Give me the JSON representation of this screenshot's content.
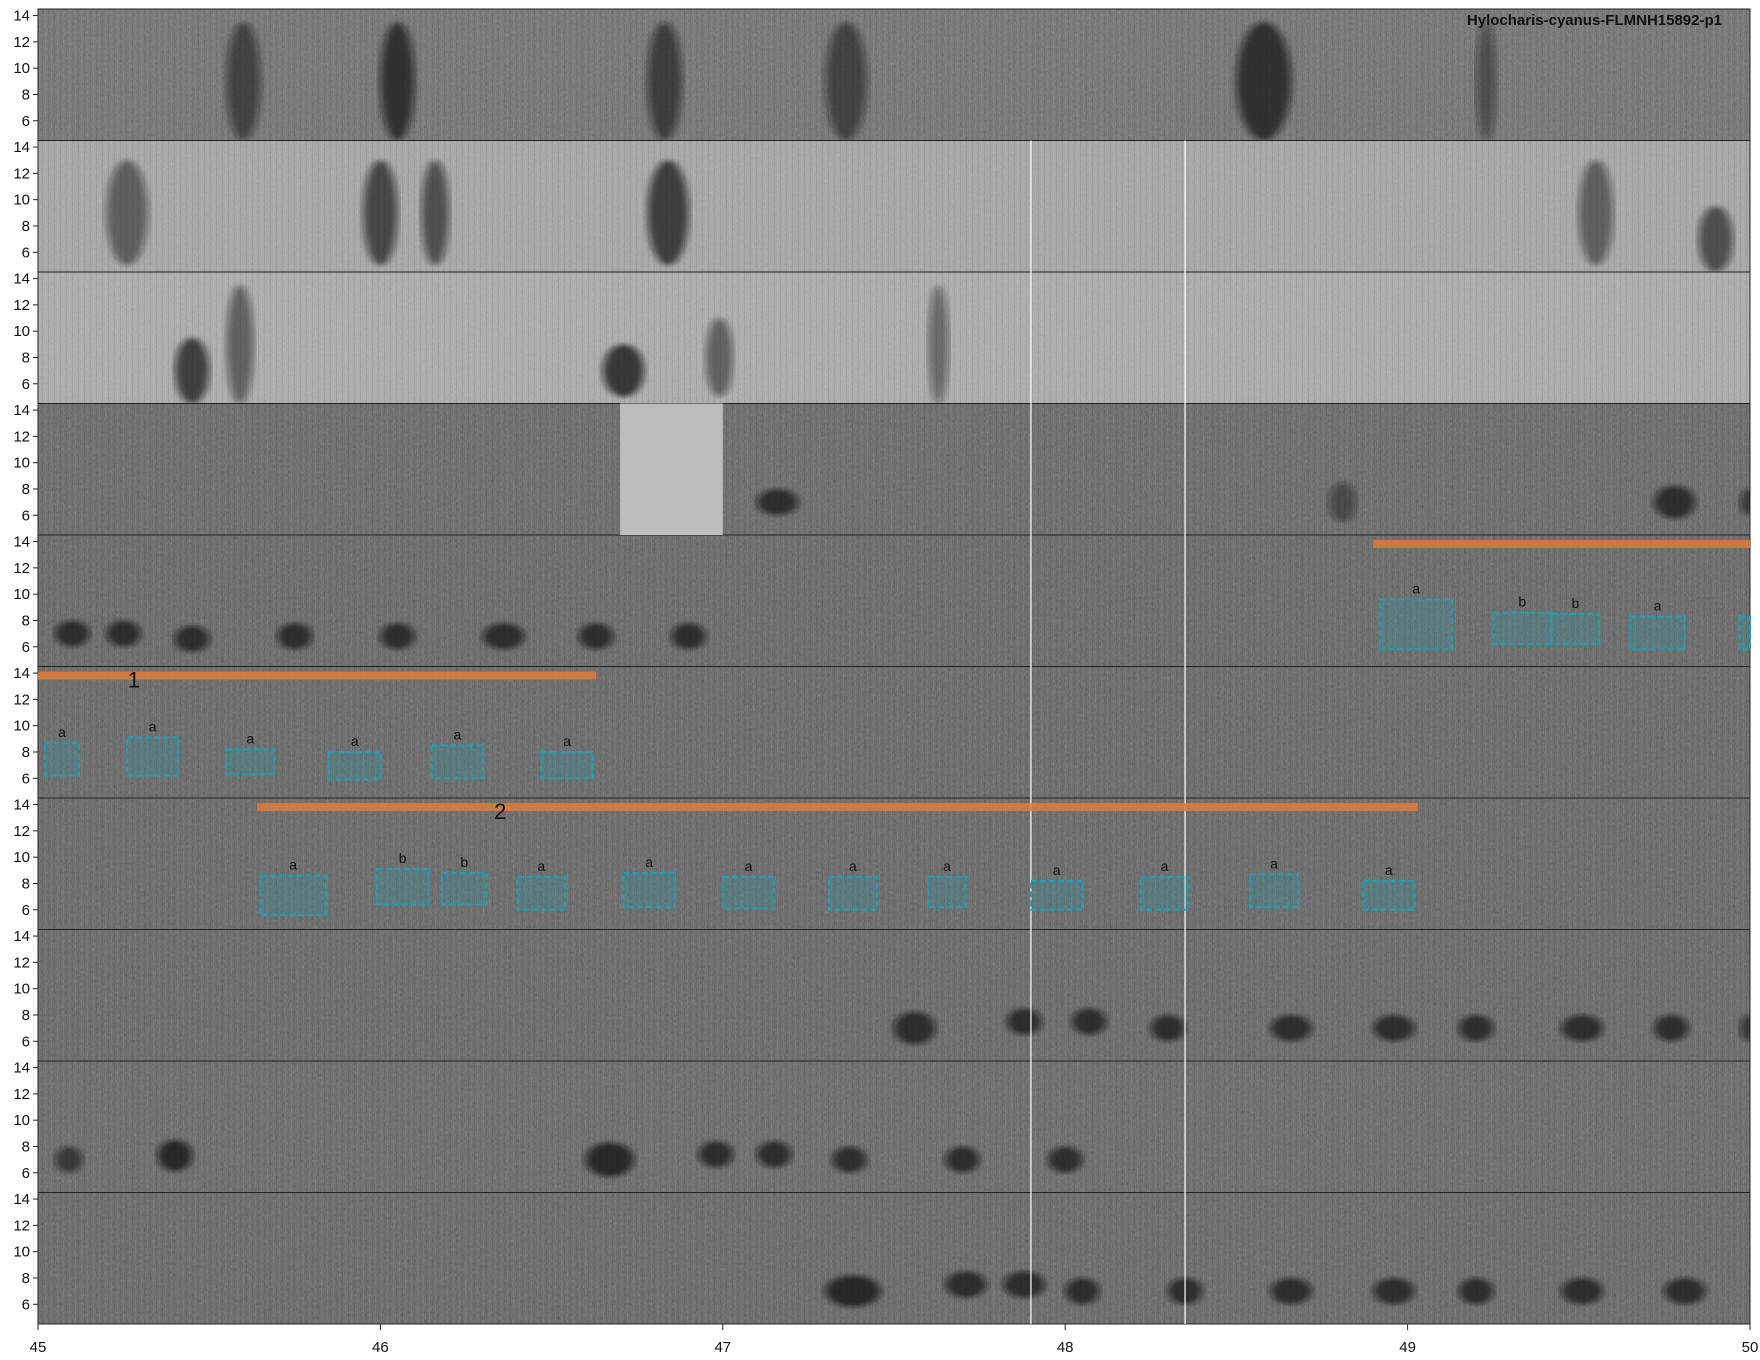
{
  "chart_data": {
    "type": "spectrogram",
    "title": "Hylocharis-cyanus-FLMNH15892-p1",
    "xlabel": "",
    "ylabel": "",
    "xlim": [
      45,
      50
    ],
    "x_ticks": [
      "45",
      "46",
      "47",
      "48",
      "49",
      "50"
    ],
    "ylim": [
      4.5,
      14.5
    ],
    "y_ticks": [
      "6",
      "8",
      "10",
      "12",
      "14"
    ],
    "grayscale": true,
    "panels": [
      {
        "bg": "#6a6a6a",
        "calls": [
          {
            "t": 45.55,
            "w": 0.1,
            "f": 9,
            "h": 9,
            "o": 0.55
          },
          {
            "t": 46.0,
            "w": 0.1,
            "f": 9,
            "h": 9,
            "o": 0.7
          },
          {
            "t": 46.78,
            "w": 0.1,
            "f": 9,
            "h": 9,
            "o": 0.6
          },
          {
            "t": 47.3,
            "w": 0.12,
            "f": 9,
            "h": 9,
            "o": 0.55
          },
          {
            "t": 48.5,
            "w": 0.16,
            "f": 9,
            "h": 9,
            "o": 0.7
          },
          {
            "t": 49.2,
            "w": 0.06,
            "f": 9,
            "h": 9,
            "o": 0.45
          }
        ]
      },
      {
        "bg": "#9e9e9e",
        "calls": [
          {
            "t": 45.2,
            "w": 0.12,
            "f": 9,
            "h": 8,
            "o": 0.5
          },
          {
            "t": 45.95,
            "w": 0.1,
            "f": 9,
            "h": 8,
            "o": 0.65
          },
          {
            "t": 46.12,
            "w": 0.08,
            "f": 9,
            "h": 8,
            "o": 0.6
          },
          {
            "t": 46.78,
            "w": 0.12,
            "f": 9,
            "h": 8,
            "o": 0.7
          },
          {
            "t": 49.5,
            "w": 0.1,
            "f": 9,
            "h": 8,
            "o": 0.5
          },
          {
            "t": 49.85,
            "w": 0.1,
            "f": 7,
            "h": 5,
            "o": 0.6
          }
        ]
      },
      {
        "bg": "#a4a4a4",
        "calls": [
          {
            "t": 45.4,
            "w": 0.1,
            "f": 7,
            "h": 5,
            "o": 0.7
          },
          {
            "t": 45.55,
            "w": 0.08,
            "f": 9,
            "h": 9,
            "o": 0.5
          },
          {
            "t": 46.65,
            "w": 0.12,
            "f": 7,
            "h": 4,
            "o": 0.75
          },
          {
            "t": 46.95,
            "w": 0.08,
            "f": 8,
            "h": 6,
            "o": 0.5
          },
          {
            "t": 47.6,
            "w": 0.06,
            "f": 9,
            "h": 9,
            "o": 0.45
          }
        ]
      },
      {
        "bg": "#606060",
        "calls": [
          {
            "t": 47.1,
            "w": 0.12,
            "f": 7,
            "h": 2,
            "o": 0.7
          },
          {
            "t": 48.77,
            "w": 0.08,
            "f": 7,
            "h": 3,
            "o": 0.45
          },
          {
            "t": 49.72,
            "w": 0.12,
            "f": 7,
            "h": 2.5,
            "o": 0.7
          },
          {
            "t": 49.97,
            "w": 0.06,
            "f": 7,
            "h": 2,
            "o": 0.6
          }
        ]
      },
      {
        "bg": "#5e5e5e",
        "calls": [
          {
            "t": 45.05,
            "w": 0.1,
            "f": 7,
            "h": 2,
            "o": 0.7
          },
          {
            "t": 45.2,
            "w": 0.1,
            "f": 7,
            "h": 2,
            "o": 0.7
          },
          {
            "t": 45.4,
            "w": 0.1,
            "f": 6.6,
            "h": 2,
            "o": 0.7
          },
          {
            "t": 45.7,
            "w": 0.1,
            "f": 6.8,
            "h": 2,
            "o": 0.7
          },
          {
            "t": 46.0,
            "w": 0.1,
            "f": 6.8,
            "h": 2,
            "o": 0.7
          },
          {
            "t": 46.3,
            "w": 0.12,
            "f": 6.8,
            "h": 2,
            "o": 0.7
          },
          {
            "t": 46.58,
            "w": 0.1,
            "f": 6.8,
            "h": 2,
            "o": 0.7
          },
          {
            "t": 46.85,
            "w": 0.1,
            "f": 6.8,
            "h": 2,
            "o": 0.7
          }
        ]
      },
      {
        "bg": "#5e5e5e",
        "calls": []
      },
      {
        "bg": "#5e5e5e",
        "calls": []
      },
      {
        "bg": "#5e5e5e",
        "calls": [
          {
            "t": 47.5,
            "w": 0.12,
            "f": 7,
            "h": 2.5,
            "o": 0.7
          },
          {
            "t": 47.83,
            "w": 0.1,
            "f": 7.5,
            "h": 2,
            "o": 0.7
          },
          {
            "t": 48.02,
            "w": 0.1,
            "f": 7.5,
            "h": 2,
            "o": 0.7
          },
          {
            "t": 48.25,
            "w": 0.1,
            "f": 7,
            "h": 2,
            "o": 0.7
          },
          {
            "t": 48.6,
            "w": 0.12,
            "f": 7,
            "h": 2,
            "o": 0.7
          },
          {
            "t": 48.9,
            "w": 0.12,
            "f": 7,
            "h": 2,
            "o": 0.7
          },
          {
            "t": 49.15,
            "w": 0.1,
            "f": 7,
            "h": 2,
            "o": 0.7
          },
          {
            "t": 49.45,
            "w": 0.12,
            "f": 7,
            "h": 2,
            "o": 0.7
          },
          {
            "t": 49.72,
            "w": 0.1,
            "f": 7,
            "h": 2,
            "o": 0.7
          },
          {
            "t": 49.97,
            "w": 0.06,
            "f": 7,
            "h": 2,
            "o": 0.6
          }
        ]
      },
      {
        "bg": "#606060",
        "calls": [
          {
            "t": 45.05,
            "w": 0.08,
            "f": 7,
            "h": 2,
            "o": 0.6
          },
          {
            "t": 45.35,
            "w": 0.1,
            "f": 7.3,
            "h": 2.4,
            "o": 0.75
          },
          {
            "t": 46.6,
            "w": 0.14,
            "f": 7,
            "h": 2.6,
            "o": 0.75
          },
          {
            "t": 46.93,
            "w": 0.1,
            "f": 7.4,
            "h": 2,
            "o": 0.7
          },
          {
            "t": 47.1,
            "w": 0.1,
            "f": 7.4,
            "h": 2,
            "o": 0.7
          },
          {
            "t": 47.32,
            "w": 0.1,
            "f": 7,
            "h": 2,
            "o": 0.7
          },
          {
            "t": 47.65,
            "w": 0.1,
            "f": 7,
            "h": 2,
            "o": 0.7
          },
          {
            "t": 47.95,
            "w": 0.1,
            "f": 7,
            "h": 2,
            "o": 0.7
          }
        ]
      },
      {
        "bg": "#5e5e5e",
        "calls": [
          {
            "t": 47.3,
            "w": 0.16,
            "f": 7,
            "h": 2.4,
            "o": 0.75
          },
          {
            "t": 47.65,
            "w": 0.12,
            "f": 7.5,
            "h": 2,
            "o": 0.7
          },
          {
            "t": 47.82,
            "w": 0.12,
            "f": 7.5,
            "h": 2,
            "o": 0.7
          },
          {
            "t": 48.0,
            "w": 0.1,
            "f": 7,
            "h": 2,
            "o": 0.7
          },
          {
            "t": 48.3,
            "w": 0.1,
            "f": 7,
            "h": 2,
            "o": 0.7
          },
          {
            "t": 48.6,
            "w": 0.12,
            "f": 7,
            "h": 2,
            "o": 0.7
          },
          {
            "t": 48.9,
            "w": 0.12,
            "f": 7,
            "h": 2,
            "o": 0.7
          },
          {
            "t": 49.15,
            "w": 0.1,
            "f": 7,
            "h": 2,
            "o": 0.7
          },
          {
            "t": 49.45,
            "w": 0.12,
            "f": 7,
            "h": 2,
            "o": 0.7
          },
          {
            "t": 49.75,
            "w": 0.12,
            "f": 7,
            "h": 2,
            "o": 0.7
          }
        ]
      }
    ],
    "segments": [
      {
        "panel": 4,
        "t0": 48.9,
        "t1": 50.0,
        "label": "",
        "label_t": 48.9
      },
      {
        "panel": 5,
        "t0": 45.0,
        "t1": 46.63,
        "label": "1",
        "label_t": 45.28
      },
      {
        "panel": 6,
        "t0": 45.64,
        "t1": 49.03,
        "label": "2",
        "label_t": 46.35
      }
    ],
    "boxes": [
      {
        "panel": 4,
        "t0": 48.92,
        "t1": 49.13,
        "f0": 5.8,
        "f1": 9.6,
        "label": "a"
      },
      {
        "panel": 4,
        "t0": 49.25,
        "t1": 49.42,
        "f0": 6.2,
        "f1": 8.6,
        "label": "b"
      },
      {
        "panel": 4,
        "t0": 49.42,
        "t1": 49.56,
        "f0": 6.2,
        "f1": 8.5,
        "label": "b"
      },
      {
        "panel": 4,
        "t0": 49.65,
        "t1": 49.81,
        "f0": 5.8,
        "f1": 8.3,
        "label": "a"
      },
      {
        "panel": 4,
        "t0": 49.97,
        "t1": 50.0,
        "f0": 5.8,
        "f1": 8.3,
        "label": ""
      },
      {
        "panel": 5,
        "t0": 45.02,
        "t1": 45.12,
        "f0": 6.2,
        "f1": 8.7,
        "label": "a"
      },
      {
        "panel": 5,
        "t0": 45.26,
        "t1": 45.41,
        "f0": 6.2,
        "f1": 9.1,
        "label": "a"
      },
      {
        "panel": 5,
        "t0": 45.55,
        "t1": 45.69,
        "f0": 6.3,
        "f1": 8.2,
        "label": "a"
      },
      {
        "panel": 5,
        "t0": 45.85,
        "t1": 46.0,
        "f0": 5.9,
        "f1": 8.0,
        "label": "a"
      },
      {
        "panel": 5,
        "t0": 46.15,
        "t1": 46.3,
        "f0": 6.0,
        "f1": 8.5,
        "label": "a"
      },
      {
        "panel": 5,
        "t0": 46.47,
        "t1": 46.62,
        "f0": 6.0,
        "f1": 8.0,
        "label": "a"
      },
      {
        "panel": 6,
        "t0": 45.65,
        "t1": 45.84,
        "f0": 5.6,
        "f1": 8.6,
        "label": "a"
      },
      {
        "panel": 6,
        "t0": 45.99,
        "t1": 46.14,
        "f0": 6.4,
        "f1": 9.1,
        "label": "b"
      },
      {
        "panel": 6,
        "t0": 46.18,
        "t1": 46.31,
        "f0": 6.4,
        "f1": 8.8,
        "label": "b"
      },
      {
        "panel": 6,
        "t0": 46.4,
        "t1": 46.54,
        "f0": 6.0,
        "f1": 8.5,
        "label": "a"
      },
      {
        "panel": 6,
        "t0": 46.71,
        "t1": 46.86,
        "f0": 6.2,
        "f1": 8.8,
        "label": "a"
      },
      {
        "panel": 6,
        "t0": 47.0,
        "t1": 47.15,
        "f0": 6.1,
        "f1": 8.5,
        "label": "a"
      },
      {
        "panel": 6,
        "t0": 47.31,
        "t1": 47.45,
        "f0": 6.0,
        "f1": 8.5,
        "label": "a"
      },
      {
        "panel": 6,
        "t0": 47.6,
        "t1": 47.71,
        "f0": 6.2,
        "f1": 8.5,
        "label": "a"
      },
      {
        "panel": 6,
        "t0": 47.9,
        "t1": 48.05,
        "f0": 6.0,
        "f1": 8.2,
        "label": "a"
      },
      {
        "panel": 6,
        "t0": 48.22,
        "t1": 48.36,
        "f0": 6.0,
        "f1": 8.5,
        "label": "a"
      },
      {
        "panel": 6,
        "t0": 48.54,
        "t1": 48.68,
        "f0": 6.2,
        "f1": 8.7,
        "label": "a"
      },
      {
        "panel": 6,
        "t0": 48.87,
        "t1": 49.02,
        "f0": 6.0,
        "f1": 8.2,
        "label": "a"
      }
    ],
    "gaps": [
      {
        "t0": 46.7,
        "t1": 47.0,
        "panel": 3,
        "color": "#bdbdbd"
      }
    ],
    "vlines": [
      47.9,
      48.35
    ],
    "colors": {
      "box": "#1aa0b4",
      "segment": "#e07b39"
    }
  }
}
